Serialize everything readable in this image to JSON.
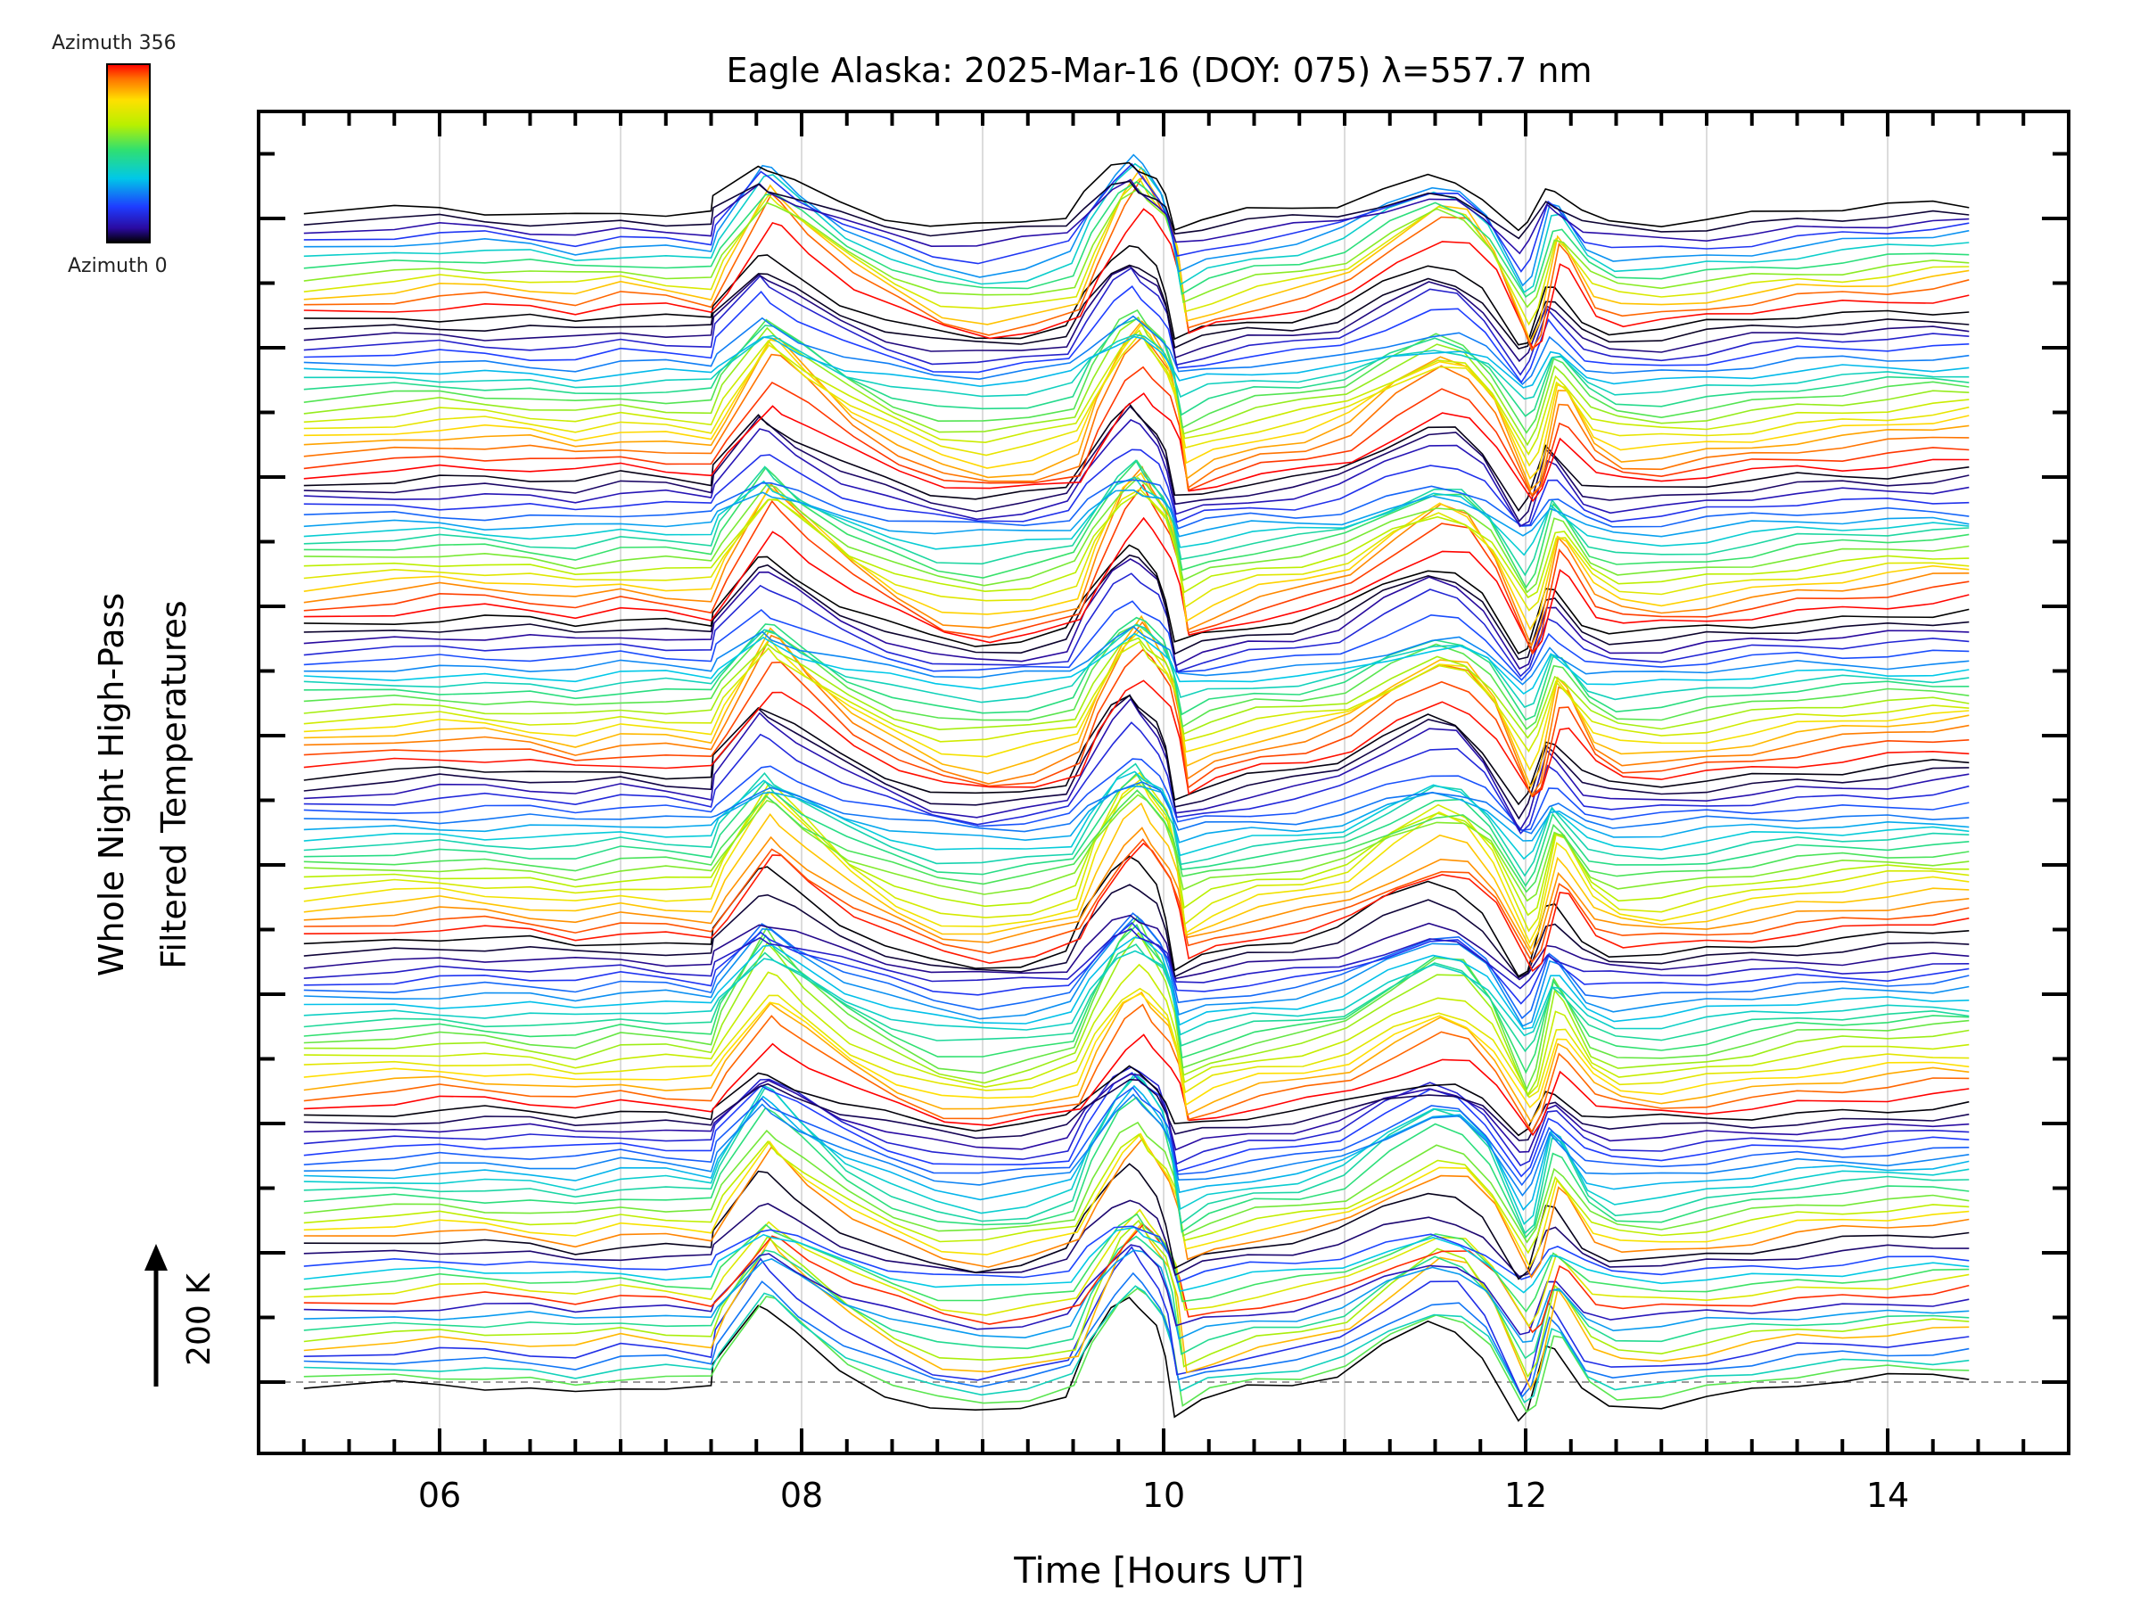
{
  "chart_data": {
    "type": "line",
    "title": "Eagle Alaska: 2025-Mar-16 (DOY: 075) λ=557.7 nm",
    "xlabel": "Time [Hours UT]",
    "ylabel_line1": "Whole Night High-Pass",
    "ylabel_line2": "Filtered Temperatures",
    "scale_label": "200 K",
    "scale_kelvin": 200,
    "xlim": [
      5.0,
      15.0
    ],
    "x_tick_values": [
      6,
      8,
      10,
      12,
      14
    ],
    "x_tick_labels": [
      "06",
      "08",
      "10",
      "12",
      "14"
    ],
    "x_minor_step": 0.25,
    "grid": "vertical",
    "colorbar": {
      "top_label": "Azimuth 356",
      "bottom_label": "Azimuth 0",
      "min_azimuth": 0,
      "max_azimuth": 356,
      "colormap": "rainbow"
    },
    "time_hours": [
      5.25,
      5.75,
      6.0,
      6.25,
      6.5,
      6.75,
      7.0,
      7.25,
      7.5,
      7.55,
      7.8,
      7.85,
      8.0,
      8.25,
      8.5,
      8.75,
      9.0,
      9.25,
      9.5,
      9.6,
      9.75,
      9.85,
      9.9,
      10.0,
      10.05,
      10.1,
      10.25,
      10.5,
      10.75,
      11.0,
      11.25,
      11.5,
      11.65,
      11.8,
      12.0,
      12.05,
      12.15,
      12.2,
      12.35,
      12.5,
      12.75,
      13.0,
      13.25,
      13.5,
      13.75,
      14.0,
      14.25,
      14.45
    ],
    "common_profile_kelvin": [
      0,
      8,
      12,
      10,
      6,
      -2,
      10,
      6,
      0,
      40,
      150,
      140,
      100,
      40,
      0,
      -30,
      -40,
      -30,
      -10,
      60,
      140,
      170,
      150,
      110,
      60,
      -40,
      -20,
      0,
      10,
      30,
      80,
      120,
      110,
      60,
      -60,
      -40,
      80,
      70,
      0,
      -20,
      -20,
      -10,
      0,
      10,
      15,
      20,
      25,
      28
    ],
    "lines_bottom_to_top": [
      {
        "azimuth": 0
      },
      {
        "azimuth": 200
      },
      {
        "azimuth": 150
      },
      {
        "azimuth": 95
      },
      {
        "azimuth": 60
      },
      {
        "azimuth": 300
      },
      {
        "azimuth": 230
      },
      {
        "azimuth": 170
      },
      {
        "azimuth": 110
      },
      {
        "azimuth": 40
      },
      {
        "azimuth": 345
      },
      {
        "azimuth": 260
      },
      {
        "azimuth": 190
      },
      {
        "azimuth": 130
      },
      {
        "azimuth": 75
      },
      {
        "azimuth": 20
      },
      {
        "azimuth": 5
      },
      {
        "azimuth": 320
      },
      {
        "azimuth": 280
      },
      {
        "azimuth": 240
      },
      {
        "azimuth": 210
      },
      {
        "azimuth": 180
      },
      {
        "azimuth": 160
      },
      {
        "azimuth": 140
      },
      {
        "azimuth": 120
      },
      {
        "azimuth": 100
      },
      {
        "azimuth": 85
      },
      {
        "azimuth": 70
      },
      {
        "azimuth": 50
      },
      {
        "azimuth": 30
      },
      {
        "azimuth": 15
      },
      {
        "azimuth": 2
      },
      {
        "azimuth": 356
      },
      {
        "azimuth": 330
      },
      {
        "azimuth": 305
      },
      {
        "azimuth": 285
      },
      {
        "azimuth": 265
      },
      {
        "azimuth": 245
      },
      {
        "azimuth": 225
      },
      {
        "azimuth": 205
      },
      {
        "azimuth": 185
      },
      {
        "azimuth": 165
      },
      {
        "azimuth": 145
      },
      {
        "azimuth": 125
      },
      {
        "azimuth": 105
      },
      {
        "azimuth": 90
      },
      {
        "azimuth": 65
      },
      {
        "azimuth": 45
      },
      {
        "azimuth": 25
      },
      {
        "azimuth": 10
      },
      {
        "azimuth": 1
      },
      {
        "azimuth": 350
      },
      {
        "azimuth": 335
      },
      {
        "azimuth": 315
      },
      {
        "azimuth": 295
      },
      {
        "azimuth": 275
      },
      {
        "azimuth": 255
      },
      {
        "azimuth": 235
      },
      {
        "azimuth": 215
      },
      {
        "azimuth": 195
      },
      {
        "azimuth": 175
      },
      {
        "azimuth": 155
      },
      {
        "azimuth": 135
      },
      {
        "azimuth": 115
      },
      {
        "azimuth": 95
      },
      {
        "azimuth": 80
      },
      {
        "azimuth": 55
      },
      {
        "azimuth": 35
      },
      {
        "azimuth": 12
      },
      {
        "azimuth": 3
      },
      {
        "azimuth": 352
      },
      {
        "azimuth": 338
      },
      {
        "azimuth": 322
      },
      {
        "azimuth": 300
      },
      {
        "azimuth": 278
      },
      {
        "azimuth": 252
      },
      {
        "azimuth": 228
      },
      {
        "azimuth": 200
      },
      {
        "azimuth": 178
      },
      {
        "azimuth": 150
      },
      {
        "azimuth": 128
      },
      {
        "azimuth": 102
      },
      {
        "azimuth": 78
      },
      {
        "azimuth": 52
      },
      {
        "azimuth": 28
      },
      {
        "azimuth": 8
      },
      {
        "azimuth": 0
      },
      {
        "azimuth": 355
      },
      {
        "azimuth": 340
      },
      {
        "azimuth": 318
      },
      {
        "azimuth": 290
      },
      {
        "azimuth": 262
      },
      {
        "azimuth": 238
      },
      {
        "azimuth": 212
      },
      {
        "azimuth": 188
      },
      {
        "azimuth": 162
      },
      {
        "azimuth": 138
      },
      {
        "azimuth": 112
      },
      {
        "azimuth": 88
      },
      {
        "azimuth": 62
      },
      {
        "azimuth": 38
      },
      {
        "azimuth": 18
      },
      {
        "azimuth": 4
      },
      {
        "azimuth": 356
      },
      {
        "azimuth": 342
      },
      {
        "azimuth": 326
      },
      {
        "azimuth": 308
      },
      {
        "azimuth": 288
      },
      {
        "azimuth": 268
      },
      {
        "azimuth": 248
      },
      {
        "azimuth": 222
      },
      {
        "azimuth": 198
      },
      {
        "azimuth": 172
      },
      {
        "azimuth": 148
      },
      {
        "azimuth": 122
      },
      {
        "azimuth": 98
      },
      {
        "azimuth": 72
      },
      {
        "azimuth": 48
      },
      {
        "azimuth": 22
      },
      {
        "azimuth": 6
      },
      {
        "azimuth": 1
      },
      {
        "azimuth": 354
      },
      {
        "azimuth": 330
      },
      {
        "azimuth": 296
      },
      {
        "azimuth": 258
      },
      {
        "azimuth": 218
      },
      {
        "azimuth": 180
      },
      {
        "azimuth": 142
      },
      {
        "azimuth": 106
      },
      {
        "azimuth": 66
      },
      {
        "azimuth": 32
      },
      {
        "azimuth": 9
      },
      {
        "azimuth": 0
      }
    ]
  }
}
